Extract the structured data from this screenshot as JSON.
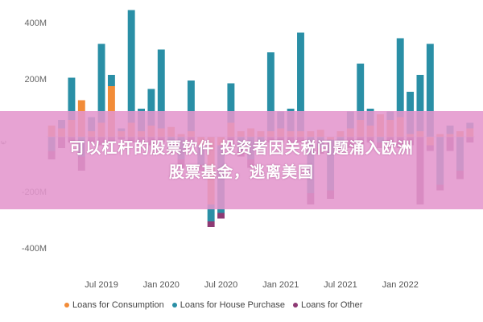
{
  "banner": {
    "line1": "可以杠杆的股票软件 投资者因关税问题涌入欧洲",
    "line2": "股票基金，逃离美国"
  },
  "colors": {
    "consumption": "#F28C38",
    "house": "#2A8FA6",
    "other": "#8E3A74",
    "axis_text": "#666666",
    "banner": "#E496CD"
  },
  "chart_data": {
    "type": "bar",
    "stacked": true,
    "axis_symbol": "€",
    "ylim": [
      -450,
      450
    ],
    "yticks": [
      {
        "value": 400,
        "label": "400M"
      },
      {
        "value": 200,
        "label": "200M"
      },
      {
        "value": -200,
        "label": "-200M"
      },
      {
        "value": -400,
        "label": "-400M"
      }
    ],
    "xticks": [
      {
        "index": 5,
        "label": "Jul 2019"
      },
      {
        "index": 11,
        "label": "Jan 2020"
      },
      {
        "index": 17,
        "label": "Jul 2020"
      },
      {
        "index": 23,
        "label": "Jan 2021"
      },
      {
        "index": 29,
        "label": "Jul 2021"
      },
      {
        "index": 35,
        "label": "Jan 2022"
      }
    ],
    "categories": [
      "m1",
      "m2",
      "m3",
      "m4",
      "m5",
      "m6",
      "m7",
      "m8",
      "m9",
      "m10",
      "m11",
      "m12",
      "m13",
      "m14",
      "m15",
      "m16",
      "m17",
      "m18",
      "m19",
      "m20",
      "m21",
      "m22",
      "m23",
      "m24",
      "m25",
      "m26",
      "m27",
      "m28",
      "m29",
      "m30",
      "m31",
      "m32",
      "m33",
      "m34",
      "m35",
      "m36",
      "m37",
      "m38",
      "m39",
      "m40",
      "m41",
      "m42",
      "m43"
    ],
    "legend_position": "bottom",
    "grid": false,
    "series": [
      {
        "name": "Loans for Consumption",
        "color_key": "consumption",
        "values": [
          40,
          30,
          60,
          130,
          20,
          50,
          180,
          20,
          50,
          20,
          40,
          30,
          35,
          10,
          20,
          -30,
          -240,
          -30,
          50,
          20,
          30,
          20,
          20,
          30,
          20,
          20,
          20,
          25,
          -10,
          20,
          30,
          60,
          40,
          80,
          60,
          70,
          10,
          20,
          -30,
          10,
          10,
          20,
          30
        ]
      },
      {
        "name": "Loans for House Purchase",
        "color_key": "house",
        "values": [
          -50,
          30,
          150,
          -70,
          50,
          280,
          40,
          10,
          400,
          80,
          130,
          280,
          -40,
          -80,
          180,
          -70,
          -60,
          -240,
          140,
          -50,
          -80,
          -40,
          280,
          60,
          80,
          350,
          -200,
          -40,
          -180,
          -30,
          60,
          200,
          60,
          -20,
          30,
          280,
          150,
          200,
          330,
          -170,
          30,
          -120,
          20
        ]
      },
      {
        "name": "Loans for Other",
        "color_key": "other",
        "values": [
          -30,
          -40,
          -20,
          -50,
          -20,
          -30,
          -20,
          -10,
          -20,
          -20,
          -30,
          -20,
          -20,
          -30,
          -20,
          -20,
          -20,
          -20,
          -40,
          -20,
          -30,
          -20,
          -20,
          -20,
          -30,
          -20,
          -40,
          -20,
          -30,
          -20,
          -40,
          -30,
          -20,
          -20,
          -40,
          -40,
          -30,
          -240,
          -20,
          -20,
          -50,
          -30,
          -20
        ]
      }
    ]
  }
}
